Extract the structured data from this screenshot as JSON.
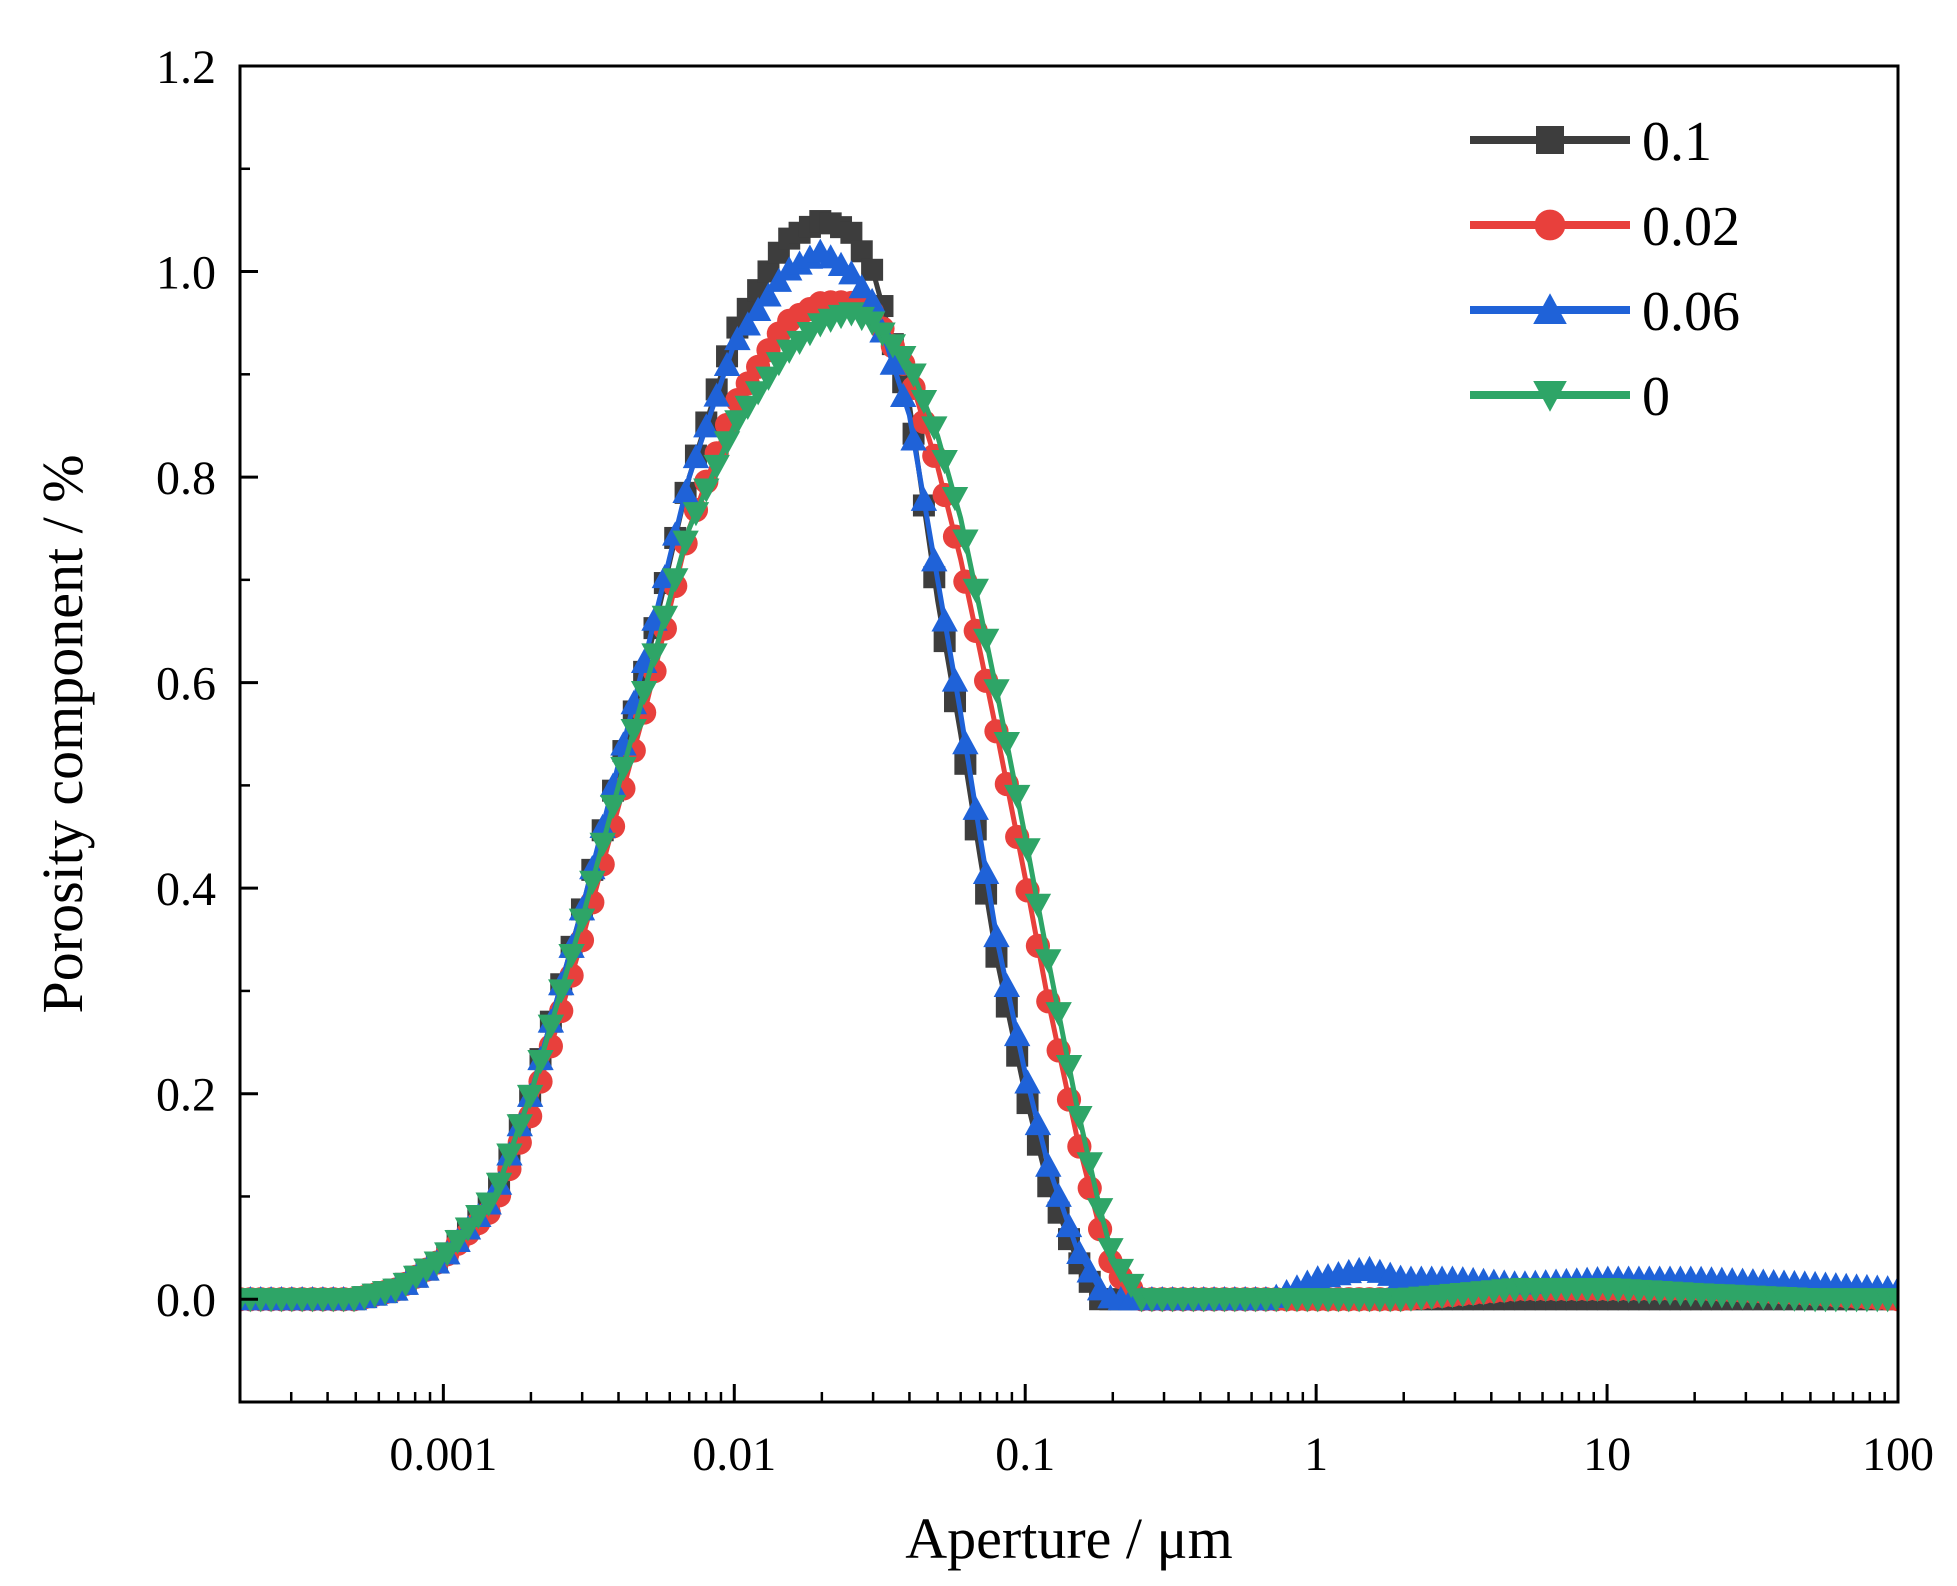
{
  "chart_data": {
    "type": "line",
    "title": "",
    "xlabel": "Aperture / μm",
    "ylabel": "Porosity component / %",
    "xscale": "log",
    "xlim": [
      0.0002,
      100
    ],
    "ylim": [
      -0.1,
      1.2
    ],
    "xticks": [
      {
        "value": 0.001,
        "label": "0.001"
      },
      {
        "value": 0.01,
        "label": "0.01"
      },
      {
        "value": 0.1,
        "label": "0.1"
      },
      {
        "value": 1,
        "label": "1"
      },
      {
        "value": 10,
        "label": "10"
      },
      {
        "value": 100,
        "label": "100"
      }
    ],
    "yticks": [
      {
        "value": 0.0,
        "label": "0.0"
      },
      {
        "value": 0.2,
        "label": "0.2"
      },
      {
        "value": 0.4,
        "label": "0.4"
      },
      {
        "value": 0.6,
        "label": "0.6"
      },
      {
        "value": 0.8,
        "label": "0.8"
      },
      {
        "value": 1.0,
        "label": "1.0"
      },
      {
        "value": 1.2,
        "label": "1.2"
      }
    ],
    "grid": false,
    "legend_position": "top-right",
    "series": [
      {
        "name": "0.1",
        "color": "#3d3d3d",
        "marker": "square",
        "x": [
          0.0002,
          0.0003,
          0.0005,
          0.0007,
          0.001,
          0.0015,
          0.002,
          0.003,
          0.005,
          0.007,
          0.01,
          0.015,
          0.02,
          0.025,
          0.03,
          0.04,
          0.05,
          0.06,
          0.07,
          0.08,
          0.1,
          0.12,
          0.15,
          0.18,
          0.2,
          0.25,
          0.3,
          0.5,
          1,
          2,
          5,
          10,
          20,
          50,
          100
        ],
        "y": [
          0.0,
          0.0,
          0.0,
          0.01,
          0.04,
          0.1,
          0.2,
          0.38,
          0.62,
          0.8,
          0.94,
          1.03,
          1.05,
          1.04,
          1.0,
          0.87,
          0.68,
          0.55,
          0.43,
          0.33,
          0.2,
          0.11,
          0.04,
          0.0,
          0.0,
          0.0,
          0.0,
          0.0,
          0.0,
          0.0,
          0.0,
          0.0,
          0.0,
          0.0,
          0.0
        ]
      },
      {
        "name": "0.02",
        "color": "#e8403c",
        "marker": "circle",
        "x": [
          0.0002,
          0.0003,
          0.0005,
          0.0007,
          0.001,
          0.0015,
          0.002,
          0.003,
          0.005,
          0.007,
          0.01,
          0.015,
          0.02,
          0.025,
          0.03,
          0.04,
          0.05,
          0.06,
          0.07,
          0.08,
          0.1,
          0.12,
          0.15,
          0.18,
          0.2,
          0.25,
          0.3,
          0.5,
          1,
          2,
          5,
          10,
          20,
          50,
          100
        ],
        "y": [
          0.0,
          0.0,
          0.0,
          0.01,
          0.04,
          0.09,
          0.18,
          0.35,
          0.58,
          0.75,
          0.87,
          0.95,
          0.97,
          0.97,
          0.96,
          0.9,
          0.81,
          0.72,
          0.63,
          0.55,
          0.41,
          0.29,
          0.16,
          0.07,
          0.03,
          0.0,
          0.0,
          0.0,
          0.0,
          0.0,
          0.01,
          0.01,
          0.01,
          0.005,
          0.0
        ]
      },
      {
        "name": "0.06",
        "color": "#1f62d8",
        "marker": "triangle-up",
        "x": [
          0.0002,
          0.0003,
          0.0005,
          0.0007,
          0.001,
          0.0015,
          0.002,
          0.003,
          0.005,
          0.007,
          0.01,
          0.015,
          0.02,
          0.025,
          0.03,
          0.04,
          0.05,
          0.06,
          0.07,
          0.08,
          0.1,
          0.12,
          0.15,
          0.18,
          0.2,
          0.25,
          0.3,
          0.5,
          0.7,
          1,
          1.5,
          2,
          3,
          5,
          10,
          20,
          50,
          100
        ],
        "y": [
          0.0,
          0.0,
          0.0,
          0.01,
          0.04,
          0.1,
          0.2,
          0.38,
          0.63,
          0.8,
          0.93,
          1.0,
          1.02,
          1.0,
          0.97,
          0.86,
          0.7,
          0.57,
          0.45,
          0.35,
          0.22,
          0.13,
          0.05,
          0.01,
          0.0,
          0.0,
          0.0,
          0.0,
          0.0,
          0.02,
          0.03,
          0.02,
          0.02,
          0.015,
          0.02,
          0.02,
          0.015,
          0.01
        ]
      },
      {
        "name": "0",
        "color": "#2ea567",
        "marker": "triangle-down",
        "x": [
          0.0002,
          0.0003,
          0.0005,
          0.0007,
          0.001,
          0.0015,
          0.002,
          0.003,
          0.005,
          0.007,
          0.01,
          0.015,
          0.02,
          0.025,
          0.03,
          0.04,
          0.05,
          0.06,
          0.07,
          0.08,
          0.1,
          0.12,
          0.15,
          0.18,
          0.2,
          0.25,
          0.3,
          0.5,
          1,
          2,
          5,
          10,
          20,
          50,
          100
        ],
        "y": [
          0.0,
          0.0,
          0.0,
          0.01,
          0.04,
          0.1,
          0.2,
          0.37,
          0.6,
          0.75,
          0.85,
          0.92,
          0.95,
          0.96,
          0.95,
          0.91,
          0.84,
          0.76,
          0.67,
          0.59,
          0.45,
          0.33,
          0.19,
          0.09,
          0.04,
          0.0,
          0.0,
          0.0,
          0.0,
          0.0,
          0.01,
          0.01,
          0.005,
          0.0,
          0.0
        ]
      }
    ]
  }
}
